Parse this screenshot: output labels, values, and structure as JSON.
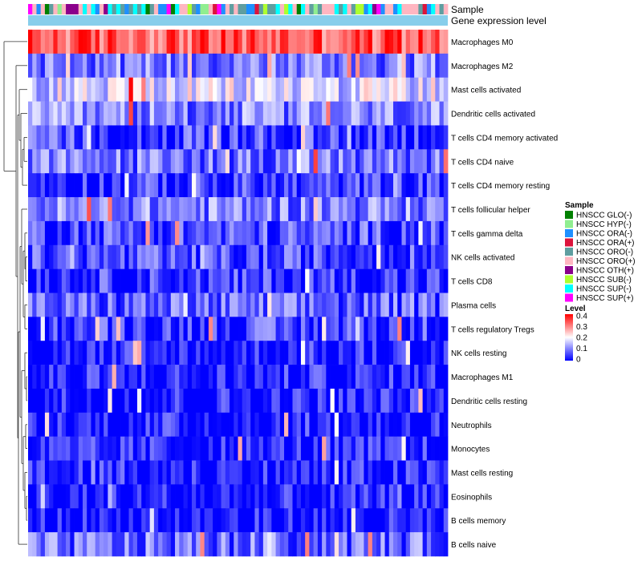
{
  "chart_data": {
    "type": "heatmap",
    "title": "",
    "annotation_tracks": [
      "Sample",
      "Gene expression level"
    ],
    "rows": [
      "Macrophages M0",
      "Macrophages M2",
      "Mast cells activated",
      "Dendritic cells activated",
      "T cells CD4 memory activated",
      "T cells CD4 naive",
      "T cells CD4 memory resting",
      "T cells follicular helper",
      "T cells gamma delta",
      "NK cells activated",
      "T cells CD8",
      "Plasma cells",
      "T cells regulatory  Tregs",
      "NK cells resting",
      "Macrophages M1",
      "Dendritic cells resting",
      "Neutrophils",
      "Monocytes",
      "Mast cells resting",
      "Eosinophils",
      "B cells memory",
      "B cells naive"
    ],
    "row_mean_levels": [
      0.33,
      0.1,
      0.17,
      0.1,
      0.05,
      0.09,
      0.04,
      0.1,
      0.06,
      0.05,
      0.04,
      0.07,
      0.05,
      0.02,
      0.02,
      0.02,
      0.02,
      0.02,
      0.02,
      0.01,
      0.01,
      0.08
    ],
    "n_samples": 100,
    "color_scale": {
      "title": "Level",
      "min": 0,
      "max": 0.4,
      "ticks": [
        "0.4",
        "0.3",
        "0.2",
        "0.1",
        "0"
      ],
      "colors": [
        "#0000ff",
        "#ffffff",
        "#ff0000"
      ]
    },
    "sample_legend": {
      "title": "Sample",
      "entries": [
        {
          "label": "HNSCC GLO(-)",
          "color": "#008000"
        },
        {
          "label": "HNSCC HYP(-)",
          "color": "#90ee90"
        },
        {
          "label": "HNSCC ORA(-)",
          "color": "#1e90ff"
        },
        {
          "label": "HNSCC ORA(+)",
          "color": "#dc143c"
        },
        {
          "label": "HNSCC ORO(-)",
          "color": "#5f9ea0"
        },
        {
          "label": "HNSCC ORO(+)",
          "color": "#ffb6c1"
        },
        {
          "label": "HNSCC OTH(+)",
          "color": "#8b008b"
        },
        {
          "label": "HNSCC SUB(-)",
          "color": "#adff2f"
        },
        {
          "label": "HNSCC SUP(-)",
          "color": "#00ffff"
        },
        {
          "label": "HNSCC SUP(+)",
          "color": "#ff00ff"
        }
      ]
    },
    "gene_expression_level_color": "#87ceeb"
  }
}
